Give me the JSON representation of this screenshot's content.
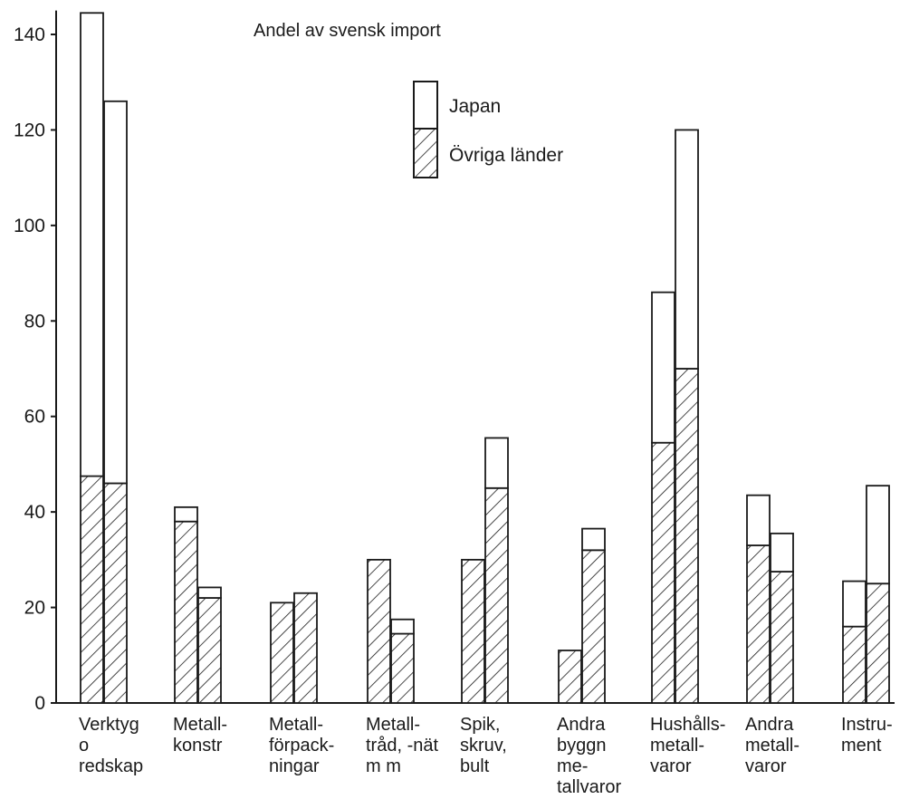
{
  "chart_data": {
    "type": "bar",
    "stacked": true,
    "title": "Andel av svensk import",
    "xlabel": "",
    "ylabel": "",
    "ylim": [
      0,
      145
    ],
    "yticks": [
      0,
      20,
      40,
      60,
      80,
      100,
      120,
      140
    ],
    "grid": false,
    "legend_position": "top-center",
    "categories": [
      [
        "Verktyg",
        "o",
        "redskap"
      ],
      [
        "Metall-",
        "konstr"
      ],
      [
        "Metall-",
        "förpack-",
        "ningar"
      ],
      [
        "Metall-",
        "tråd, -nät",
        "m m"
      ],
      [
        "Spik,",
        "skruv,",
        "bult"
      ],
      [
        "Andra",
        "byggn",
        "me-",
        "tallvaror"
      ],
      [
        "Hushålls-",
        "metall-",
        "varor"
      ],
      [
        "Andra",
        "metall-",
        "varor"
      ],
      [
        "Instru-",
        "ment"
      ]
    ],
    "bars_per_category": 2,
    "series": [
      {
        "name": "Övriga länder",
        "pattern": "hatched",
        "values": [
          [
            47.5,
            46
          ],
          [
            38,
            22
          ],
          [
            21,
            23
          ],
          [
            30,
            14.5
          ],
          [
            30,
            45
          ],
          [
            11,
            32
          ],
          [
            54.5,
            70
          ],
          [
            33,
            27.5
          ],
          [
            16,
            25
          ]
        ]
      },
      {
        "name": "Japan",
        "pattern": "white",
        "values": [
          [
            97,
            80
          ],
          [
            3,
            2.2
          ],
          [
            0,
            0
          ],
          [
            0,
            3
          ],
          [
            0,
            10.5
          ],
          [
            0,
            4.5
          ],
          [
            31.5,
            50
          ],
          [
            10.5,
            8
          ],
          [
            9.5,
            20.5
          ]
        ]
      }
    ],
    "colors": {
      "ink": "#1a1a1a",
      "fill_white": "#ffffff",
      "hatch": "#1a1a1a"
    }
  }
}
